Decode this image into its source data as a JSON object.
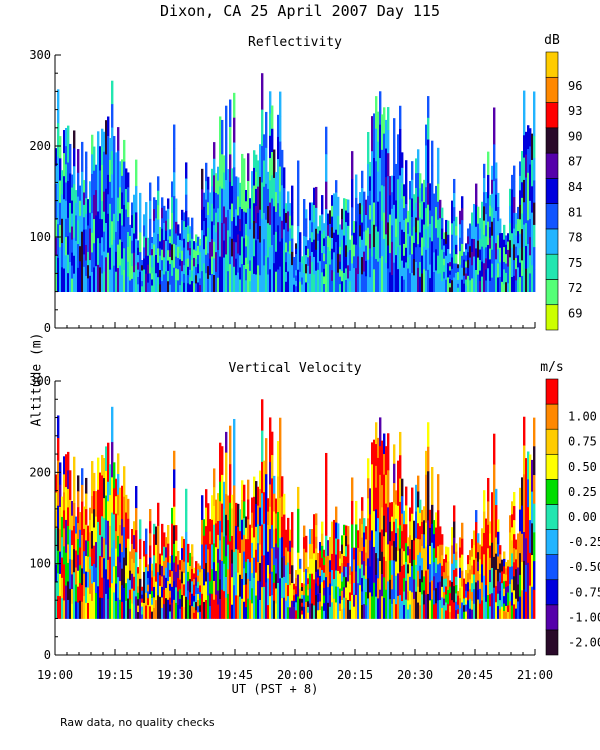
{
  "title": "Dixon, CA 25 April 2007  Day 115",
  "ylabel": "Altitude (m)",
  "xlabel": "UT  (PST + 8)",
  "footnote": "Raw data, no quality checks",
  "chart_data": [
    {
      "type": "heatmap",
      "title": "Reflectivity",
      "ylim": [
        0,
        300
      ],
      "yticks": [
        "0",
        "100",
        "200",
        "300"
      ],
      "xticks": [
        "19:00",
        "19:15",
        "19:30",
        "19:45",
        "20:00",
        "20:15",
        "20:30",
        "20:45",
        "21:00"
      ],
      "colorbar": {
        "unit": "dB",
        "labels": [
          "69",
          "72",
          "75",
          "78",
          "81",
          "84",
          "87",
          "90",
          "93",
          "96"
        ],
        "colors": [
          "#ccff00",
          "#55ff77",
          "#22e6b0",
          "#22b4ff",
          "#1155ff",
          "#0000dd",
          "#5500aa",
          "#2a0a2a",
          "#ff0000",
          "#ff8800",
          "#ffcc00"
        ]
      },
      "data_floor_m": 40,
      "time_range": [
        "19:00",
        "21:00"
      ]
    },
    {
      "type": "heatmap",
      "title": "Vertical Velocity",
      "ylim": [
        0,
        300
      ],
      "yticks": [
        "0",
        "100",
        "200",
        "300"
      ],
      "xticks": [
        "19:00",
        "19:15",
        "19:30",
        "19:45",
        "20:00",
        "20:15",
        "20:30",
        "20:45",
        "21:00"
      ],
      "colorbar": {
        "unit": "m/s",
        "labels": [
          "-2.00",
          "-1.00",
          "-0.75",
          "-0.50",
          "-0.25",
          "0.00",
          "0.25",
          "0.50",
          "0.75",
          "1.00"
        ],
        "colors": [
          "#2a0a2a",
          "#5500aa",
          "#0000dd",
          "#1155ff",
          "#22b4ff",
          "#22e6b0",
          "#00dd00",
          "#ffff00",
          "#ffcc00",
          "#ff8800",
          "#ff0000"
        ]
      },
      "data_floor_m": 40,
      "time_range": [
        "19:00",
        "21:00"
      ]
    }
  ]
}
